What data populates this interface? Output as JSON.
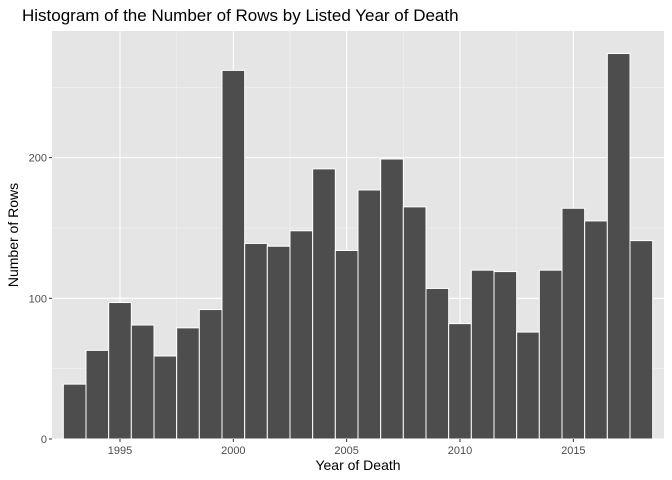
{
  "chart_data": {
    "type": "bar",
    "title": "Histogram of the Number of Rows by Listed Year of Death",
    "xlabel": "Year of Death",
    "ylabel": "Number of Rows",
    "x": [
      1993,
      1994,
      1995,
      1996,
      1997,
      1998,
      1999,
      2000,
      2001,
      2002,
      2003,
      2004,
      2005,
      2006,
      2007,
      2008,
      2009,
      2010,
      2011,
      2012,
      2013,
      2014,
      2015,
      2016,
      2017,
      2018
    ],
    "values": [
      39,
      63,
      97,
      81,
      59,
      79,
      92,
      262,
      139,
      137,
      148,
      192,
      134,
      177,
      199,
      165,
      107,
      82,
      120,
      119,
      76,
      120,
      164,
      155,
      274,
      141
    ],
    "bin_width": 1,
    "xlim": [
      1992,
      2019
    ],
    "ylim": [
      0,
      290
    ],
    "x_ticks": [
      1995,
      2000,
      2005,
      2010,
      2015
    ],
    "y_ticks": [
      0,
      100,
      200
    ],
    "grid": true,
    "colors": {
      "panel_background": "#e5e5e5",
      "grid_major": "#ffffff",
      "grid_minor": "#f2f2f2",
      "bar_fill": "#4d4d4d",
      "bar_outline": "#ffffff"
    }
  }
}
